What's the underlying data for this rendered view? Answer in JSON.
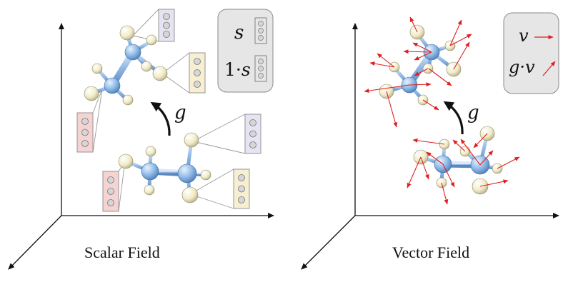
{
  "panels": [
    {
      "caption": "Scalar Field",
      "legend": {
        "row1": "s",
        "row2_prefix": "1·",
        "row2_symbol": "s"
      },
      "action_label": "g"
    },
    {
      "caption": "Vector Field",
      "legend": {
        "row1": "v",
        "row2_prefix": "g·",
        "row2_symbol": "v"
      },
      "action_label": "g"
    }
  ],
  "colors": {
    "carbon": "#8fbbe8",
    "hydrogen": "#f1ecc8",
    "vector": "#e02020",
    "legend_bg": "#e6e6e6",
    "feature_purple": "#e6e4f3",
    "feature_yellow": "#f6efd2",
    "feature_red": "#f5d3d3"
  }
}
